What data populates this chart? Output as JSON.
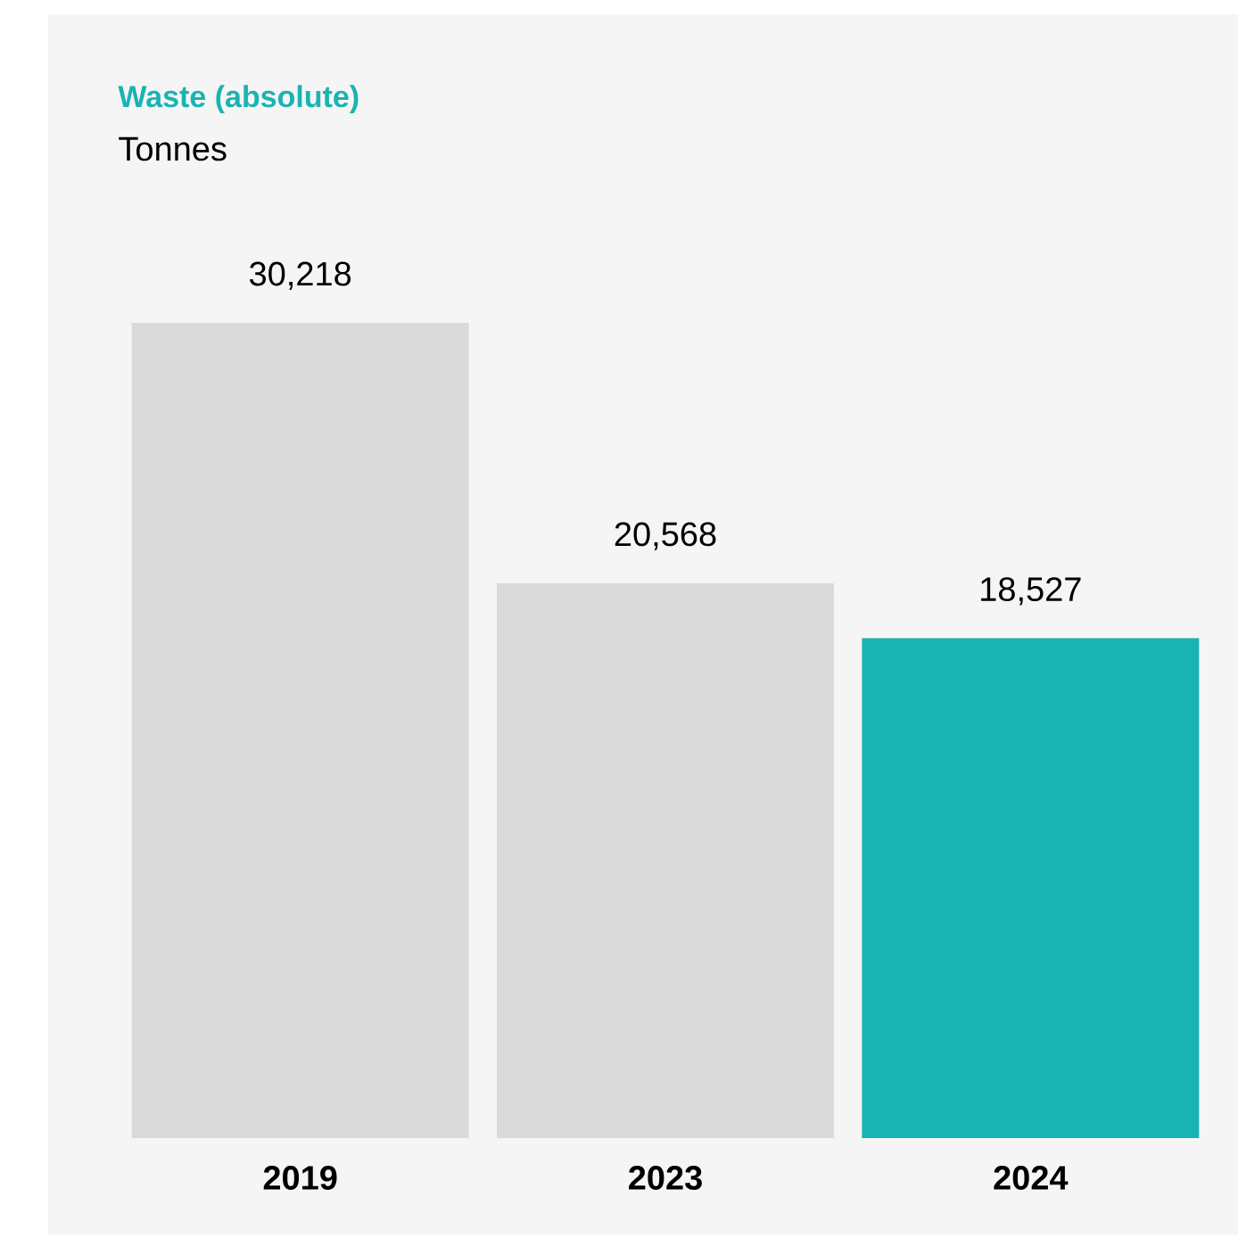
{
  "chart_data": {
    "type": "bar",
    "title": "Waste (absolute)",
    "subtitle": "Tonnes",
    "categories": [
      "2019",
      "2023",
      "2024"
    ],
    "values": [
      30218,
      20568,
      18527
    ],
    "value_labels": [
      "30,218",
      "20,568",
      "18,527"
    ],
    "colors": [
      "#dadada",
      "#dadada",
      "#1ab3b3"
    ]
  }
}
